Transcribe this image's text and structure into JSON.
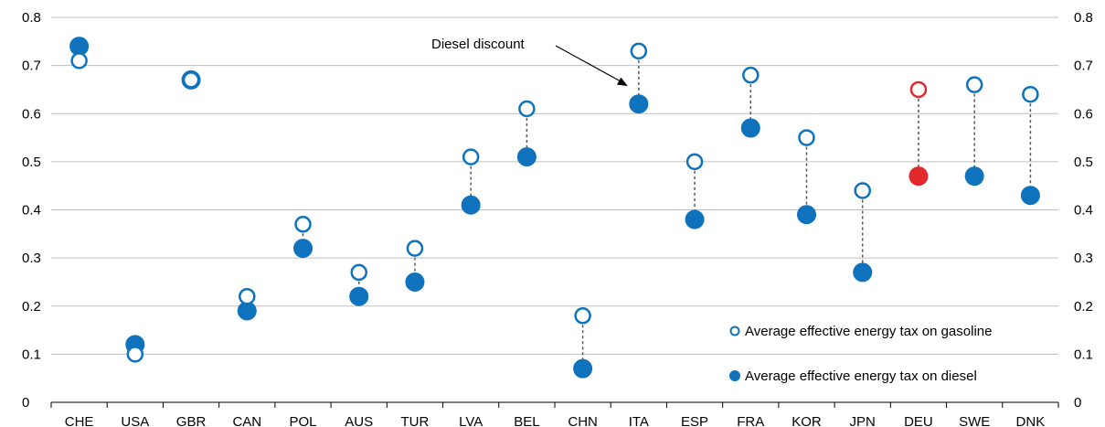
{
  "chart_data": {
    "type": "scatter",
    "title": "",
    "xlabel": "",
    "ylabel": "",
    "ylim": [
      0,
      0.8
    ],
    "yticks": [
      "0",
      "0.1",
      "0.2",
      "0.3",
      "0.4",
      "0.5",
      "0.6",
      "0.7",
      "0.8"
    ],
    "secondary_y_axis": true,
    "grid": "horizontal",
    "legend_position": "bottom-right",
    "categories": [
      "CHE",
      "USA",
      "GBR",
      "CAN",
      "POL",
      "AUS",
      "TUR",
      "LVA",
      "BEL",
      "CHN",
      "ITA",
      "ESP",
      "FRA",
      "KOR",
      "JPN",
      "DEU",
      "SWE",
      "DNK"
    ],
    "series": [
      {
        "name": "Average effective energy tax on gasoline",
        "marker": "hollow-circle",
        "values": [
          0.71,
          0.1,
          0.67,
          0.22,
          0.37,
          0.27,
          0.32,
          0.51,
          0.61,
          0.18,
          0.73,
          0.5,
          0.68,
          0.55,
          0.44,
          0.65,
          0.66,
          0.64
        ]
      },
      {
        "name": "Average effective energy tax on diesel",
        "marker": "filled-circle",
        "values": [
          0.74,
          0.12,
          0.67,
          0.19,
          0.32,
          0.22,
          0.25,
          0.41,
          0.51,
          0.07,
          0.62,
          0.38,
          0.57,
          0.39,
          0.27,
          0.47,
          0.47,
          0.43
        ]
      }
    ],
    "highlight_category": "DEU",
    "annotation": {
      "text": "Diesel discount",
      "points_to": "ITA"
    },
    "colors": {
      "primary": "#0f72bd",
      "highlight": "#e22a2e",
      "grid": "#bfbfbf",
      "axis": "#000000",
      "connector": "#555555"
    }
  }
}
